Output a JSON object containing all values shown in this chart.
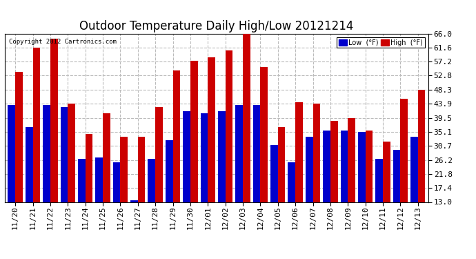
{
  "title": "Outdoor Temperature Daily High/Low 20121214",
  "copyright": "Copyright 2012 Cartronics.com",
  "legend_low": "Low  (°F)",
  "legend_high": "High  (°F)",
  "dates": [
    "11/20",
    "11/21",
    "11/22",
    "11/23",
    "11/24",
    "11/25",
    "11/26",
    "11/27",
    "11/28",
    "11/29",
    "11/30",
    "12/01",
    "12/02",
    "12/03",
    "12/04",
    "12/05",
    "12/06",
    "12/07",
    "12/08",
    "12/09",
    "12/10",
    "12/11",
    "12/12",
    "12/13"
  ],
  "highs": [
    54.0,
    61.6,
    64.5,
    43.9,
    34.5,
    41.0,
    33.5,
    33.5,
    42.8,
    54.5,
    57.5,
    58.5,
    60.8,
    66.0,
    55.5,
    36.5,
    44.5,
    43.9,
    38.5,
    39.5,
    35.5,
    32.0,
    45.5,
    48.3
  ],
  "lows": [
    43.5,
    36.5,
    43.5,
    43.0,
    26.5,
    27.0,
    25.5,
    13.5,
    26.5,
    32.5,
    41.5,
    41.0,
    41.5,
    43.5,
    43.5,
    31.0,
    25.5,
    33.5,
    35.5,
    35.5,
    35.0,
    26.5,
    29.5,
    33.5
  ],
  "ylim_min": 13.0,
  "ylim_max": 66.0,
  "yticks": [
    13.0,
    17.4,
    21.8,
    26.2,
    30.7,
    35.1,
    39.5,
    43.9,
    48.3,
    52.8,
    57.2,
    61.6,
    66.0
  ],
  "low_color": "#0000cc",
  "high_color": "#cc0000",
  "bg_color": "#ffffff",
  "plot_bg_color": "#ffffff",
  "grid_color": "#bbbbbb",
  "bar_width": 0.42,
  "title_fontsize": 12,
  "tick_fontsize": 8,
  "copyright_fontsize": 6.5
}
